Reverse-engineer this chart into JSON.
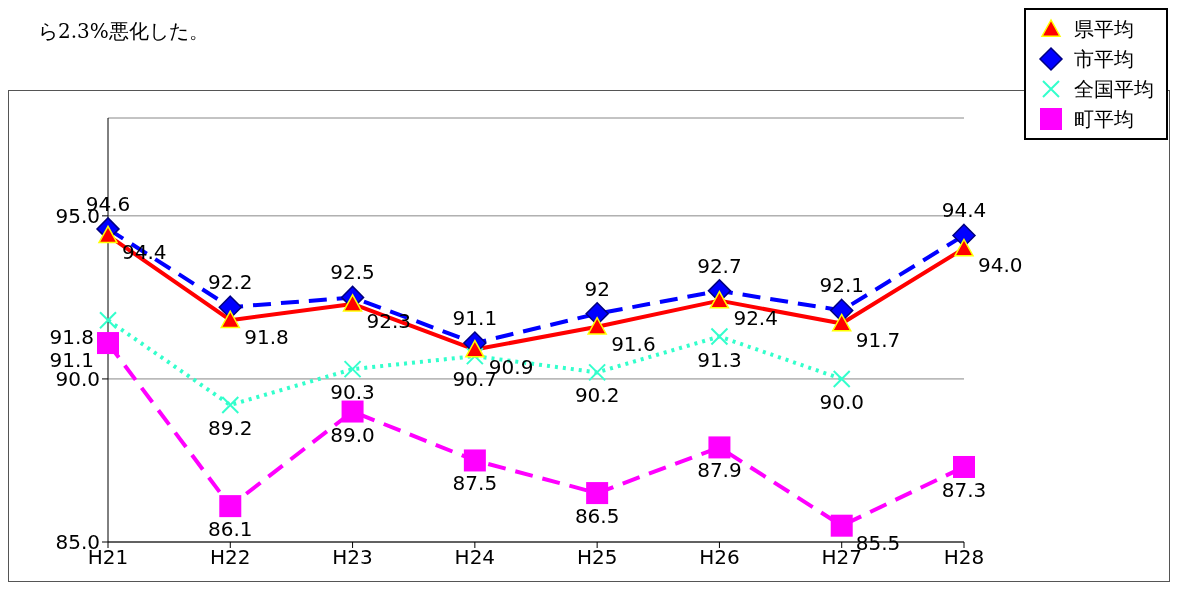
{
  "chart_data": {
    "type": "line",
    "annotations": [
      "ら2.3%悪化した。"
    ],
    "categories": [
      "H21",
      "H22",
      "H23",
      "H24",
      "H25",
      "H26",
      "H27",
      "H28"
    ],
    "series": [
      {
        "name": "県平均",
        "color": "#ff0000",
        "marker": "triangle",
        "line_style": "solid",
        "values": [
          94.4,
          91.8,
          92.3,
          90.9,
          91.6,
          92.4,
          91.7,
          94.0
        ],
        "value_labels": [
          "94.4",
          "91.8",
          "92.3",
          "90.9",
          "91.6",
          "92.4",
          "91.7",
          "94.0"
        ]
      },
      {
        "name": "市平均",
        "color": "#0000ff",
        "marker": "diamond",
        "line_style": "dashed",
        "values": [
          94.6,
          92.2,
          92.5,
          91.1,
          92,
          92.7,
          92.1,
          94.4
        ],
        "value_labels": [
          "94.6",
          "92.2",
          "92.5",
          "91.1",
          "92",
          "92.7",
          "92.1",
          "94.4"
        ]
      },
      {
        "name": "全国平均",
        "color": "#33ffcc",
        "marker": "cross",
        "line_style": "dotted",
        "values": [
          91.8,
          89.2,
          90.3,
          90.7,
          90.2,
          91.3,
          90.0,
          null
        ],
        "value_labels": [
          "91.8",
          "89.2",
          "90.3",
          "90.7",
          "90.2",
          "91.3",
          "90.0",
          null
        ]
      },
      {
        "name": "町平均",
        "color": "#ff00ff",
        "marker": "square",
        "line_style": "dashed",
        "values": [
          91.1,
          86.1,
          89.0,
          87.5,
          86.5,
          87.9,
          85.5,
          87.3
        ],
        "value_labels": [
          "91.1",
          "86.1",
          "89.0",
          "87.5",
          "86.5",
          "87.9",
          "85.5",
          "87.3"
        ]
      }
    ],
    "ylim": [
      85,
      98
    ],
    "yticks": [
      {
        "value": 85,
        "label": "85.0"
      },
      {
        "value": 90,
        "label": "90.0"
      },
      {
        "value": 95,
        "label": "95.0"
      }
    ],
    "data_labels": true,
    "grid": "y",
    "legend": "top right"
  }
}
